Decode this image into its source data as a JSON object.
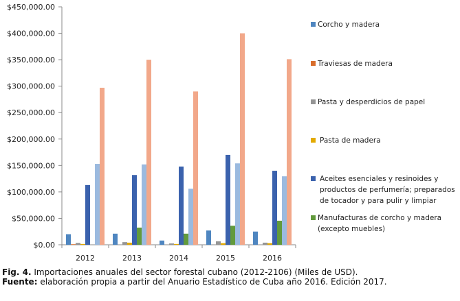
{
  "chart_data": {
    "type": "bar",
    "title": "",
    "xlabel": "",
    "ylabel": "",
    "ylim": [
      0,
      450000
    ],
    "yticks": [
      "$0.00",
      "$50,000.00",
      "$100,000.00",
      "$150,000.00",
      "$200,000.00",
      "$250,000.00",
      "$300,000.00",
      "$350,000.00",
      "$400,000.00",
      "$450,000.00"
    ],
    "categories": [
      "2012",
      "2013",
      "2014",
      "2015",
      "2016"
    ],
    "legend_position": "right",
    "series": [
      {
        "name": "Corcho y madera",
        "color": "#4f86c0",
        "values": [
          20000,
          21000,
          8000,
          27000,
          25000
        ]
      },
      {
        "name": "Traviesas de madera",
        "color": "#d86d2b",
        "values": [
          1000,
          0,
          0,
          0,
          0
        ]
      },
      {
        "name": "Pasta y desperdicios de papel",
        "color": "#959595",
        "values": [
          3500,
          5000,
          2500,
          6500,
          4000
        ]
      },
      {
        "name": "Pasta de madera",
        "color": "#e3aa00",
        "values": [
          1500,
          4000,
          1500,
          3000,
          3000
        ]
      },
      {
        "name": "Aceites esenciales y resinoides y productos de perfumería; preparados de tocador y para pulir y limpiar",
        "color": "#3b62ad",
        "values": [
          113000,
          132000,
          148000,
          170000,
          140000
        ]
      },
      {
        "name": "Manufacturas de corcho y madera (excepto muebles)",
        "color": "#629a3c",
        "values": [
          0,
          32500,
          21000,
          36000,
          45500
        ]
      },
      {
        "name": "",
        "color": "#9bbadf",
        "values": [
          153000,
          152000,
          106000,
          154000,
          129500
        ]
      },
      {
        "name": "",
        "color": "#f2a88a",
        "values": [
          297000,
          350000,
          290000,
          400000,
          351000
        ]
      }
    ]
  },
  "caption": {
    "fig_label": "Fig. 4.",
    "fig_text": " Importaciones anuales del sector forestal cubano (2012-2106) (Miles de USD).",
    "source_label": "Fuente:",
    "source_text": " elaboración propia a partir del Anuario Estadístico de Cuba año 2016. Edición 2017."
  }
}
